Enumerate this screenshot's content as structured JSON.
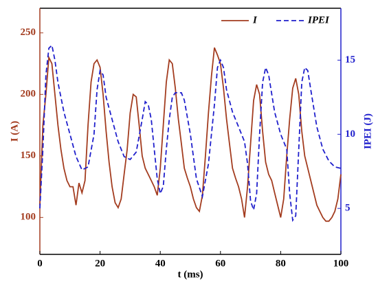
{
  "chart_data": {
    "type": "line",
    "xlabel": "t (ms)",
    "ylabel": "I (A)",
    "y2label": "IPEI (J)",
    "xlim": [
      0,
      100
    ],
    "xticks": [
      0,
      20,
      40,
      60,
      80,
      100
    ],
    "ylim": [
      70,
      270
    ],
    "yticks": [
      100,
      150,
      200,
      250
    ],
    "y2lim": [
      1.9,
      18.5
    ],
    "y2ticks": [
      5,
      10,
      15
    ],
    "legend": "upper right",
    "series": [
      {
        "name": "I",
        "color": "#a33c1f",
        "dash": false,
        "x": [
          0,
          1,
          2,
          3,
          4,
          5,
          6,
          7,
          8,
          9,
          10,
          11,
          12,
          13,
          14,
          15,
          16,
          17,
          18,
          19,
          20,
          21,
          22,
          23,
          24,
          25,
          26,
          27,
          28,
          29,
          30,
          31,
          32,
          33,
          34,
          35,
          36,
          37,
          38,
          39,
          40,
          41,
          42,
          43,
          44,
          45,
          46,
          47,
          48,
          49,
          50,
          51,
          52,
          53,
          54,
          55,
          56,
          57,
          58,
          59,
          60,
          61,
          62,
          63,
          64,
          65,
          66,
          67,
          68,
          69,
          70,
          71,
          72,
          73,
          74,
          75,
          76,
          77,
          78,
          79,
          80,
          81,
          82,
          83,
          84,
          85,
          86,
          87,
          88,
          89,
          90,
          91,
          92,
          93,
          94,
          95,
          96,
          97,
          98,
          99,
          100
        ],
        "values": [
          110,
          175,
          200,
          230,
          225,
          200,
          175,
          155,
          140,
          130,
          125,
          125,
          110,
          128,
          120,
          130,
          175,
          210,
          225,
          228,
          222,
          200,
          170,
          145,
          125,
          112,
          108,
          115,
          135,
          155,
          185,
          200,
          198,
          175,
          150,
          140,
          135,
          130,
          125,
          118,
          140,
          175,
          210,
          228,
          225,
          205,
          180,
          160,
          140,
          132,
          125,
          115,
          108,
          105,
          118,
          150,
          185,
          215,
          238,
          232,
          225,
          205,
          180,
          160,
          140,
          132,
          125,
          115,
          100,
          125,
          160,
          195,
          208,
          200,
          170,
          145,
          135,
          130,
          120,
          110,
          100,
          115,
          150,
          180,
          205,
          213,
          200,
          170,
          150,
          140,
          130,
          120,
          110,
          105,
          100,
          97,
          97,
          100,
          105,
          115,
          135
        ]
      },
      {
        "name": "IPEI",
        "color": "#1f1fcc",
        "dash": true,
        "axis": "y2",
        "x": [
          0,
          1,
          2,
          3,
          4,
          5,
          6,
          8,
          10,
          12,
          14,
          16,
          18,
          19,
          20,
          21,
          22,
          24,
          26,
          28,
          30,
          32,
          34,
          35,
          36,
          37,
          38,
          39,
          40,
          41,
          42,
          43,
          44,
          45,
          47,
          48,
          50,
          52,
          54,
          56,
          58,
          59,
          60,
          61,
          62,
          64,
          66,
          68,
          69,
          70,
          71,
          72,
          73,
          74,
          75,
          76,
          78,
          80,
          82,
          83,
          84,
          85,
          86,
          87,
          88,
          89,
          90,
          92,
          94,
          96,
          98,
          100
        ],
        "values": [
          5,
          9,
          14,
          15.8,
          16,
          15,
          13.5,
          11.5,
          10,
          8.5,
          7.6,
          7.8,
          10,
          13,
          14.3,
          14,
          12.5,
          11,
          9.5,
          8.5,
          8.3,
          8.8,
          11,
          12.2,
          12,
          11,
          9,
          7,
          6,
          6.5,
          9,
          11,
          12.5,
          12.8,
          12.8,
          12.3,
          10,
          7,
          5.8,
          8,
          12,
          14.5,
          15,
          14.5,
          13,
          11.5,
          10.5,
          9.5,
          8,
          5.5,
          4.9,
          6,
          10,
          13.5,
          14.5,
          14,
          11.5,
          10,
          9,
          6,
          4.2,
          4.5,
          9,
          13.5,
          14.5,
          14.3,
          13,
          10.5,
          9,
          8.2,
          7.8,
          7.7
        ]
      }
    ]
  }
}
